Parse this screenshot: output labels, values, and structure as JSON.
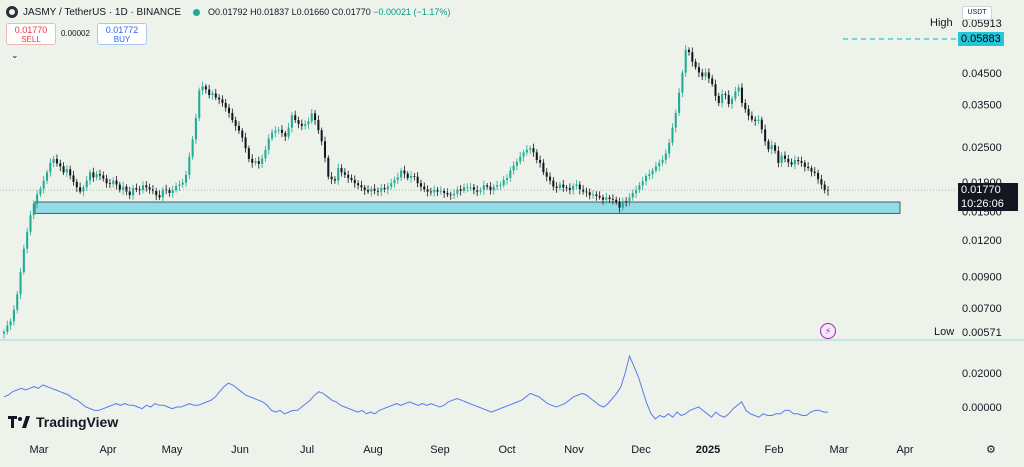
{
  "header": {
    "title": "JASMY / TetherUS · 1D · BINANCE",
    "open": "O0.01792",
    "high": "H0.01837",
    "low": "L0.01660",
    "close": "C0.01770",
    "change": "−0.00021 (−1.17%)"
  },
  "trade": {
    "sell_price": "0.01770",
    "sell_label": "SELL",
    "spread": "0.00002",
    "buy_price": "0.01772",
    "buy_label": "BUY"
  },
  "currency": "USDT",
  "price_axis": {
    "high_label": "High",
    "high_value": "0.05913",
    "high_tag": "0.05883",
    "low_label": "Low",
    "low_value": "0.00571",
    "current_price": "0.01770",
    "countdown": "10:26:06",
    "ticks": [
      {
        "label": "0.04500",
        "value": 0.045
      },
      {
        "label": "0.03500",
        "value": 0.035
      },
      {
        "label": "0.02500",
        "value": 0.025
      },
      {
        "label": "0.01900",
        "value": 0.019
      },
      {
        "label": "0.01500",
        "value": 0.015
      },
      {
        "label": "0.01200",
        "value": 0.012
      },
      {
        "label": "0.00900",
        "value": 0.009
      },
      {
        "label": "0.00700",
        "value": 0.007
      }
    ]
  },
  "indicator_axis": {
    "ticks": [
      {
        "label": "0.02000",
        "value": 0.02
      },
      {
        "label": "0.00000",
        "value": 0.0
      }
    ]
  },
  "time_axis": [
    "Mar",
    "Apr",
    "May",
    "Jun",
    "Jul",
    "Aug",
    "Sep",
    "Oct",
    "Nov",
    "Dec",
    "2025",
    "Feb",
    "Mar",
    "Apr"
  ],
  "brand": "TradingView",
  "colors": {
    "background": "#edf2ea",
    "up": "#22ab94",
    "down": "#131722",
    "zone_fill": "#93dbe6",
    "indicator_line": "#5b7bea",
    "high_tag": "#26c6da"
  },
  "chart_data": {
    "type": "candlestick",
    "support_zone": {
      "from": 0.0148,
      "to": 0.0162
    },
    "close_series": [
      0.0058,
      0.0061,
      0.0063,
      0.0069,
      0.0078,
      0.0093,
      0.0112,
      0.0128,
      0.0146,
      0.016,
      0.0172,
      0.018,
      0.0192,
      0.0205,
      0.0221,
      0.0228,
      0.022,
      0.0215,
      0.0205,
      0.021,
      0.02,
      0.019,
      0.0182,
      0.0176,
      0.0182,
      0.0192,
      0.0205,
      0.0197,
      0.0202,
      0.02,
      0.0195,
      0.0188,
      0.0187,
      0.0192,
      0.0186,
      0.0178,
      0.0183,
      0.0176,
      0.0171,
      0.0181,
      0.0179,
      0.0178,
      0.0185,
      0.0182,
      0.0179,
      0.0177,
      0.0171,
      0.0168,
      0.0179,
      0.0178,
      0.0174,
      0.0178,
      0.0184,
      0.0186,
      0.0189,
      0.0201,
      0.0232,
      0.0266,
      0.0315,
      0.0392,
      0.0405,
      0.0395,
      0.0378,
      0.0383,
      0.037,
      0.0365,
      0.0355,
      0.0342,
      0.0328,
      0.031,
      0.0296,
      0.0285,
      0.027,
      0.0248,
      0.0228,
      0.0221,
      0.0224,
      0.0219,
      0.0229,
      0.0245,
      0.0268,
      0.0281,
      0.0285,
      0.0287,
      0.028,
      0.0272,
      0.0292,
      0.0322,
      0.031,
      0.0301,
      0.0296,
      0.03,
      0.0307,
      0.0327,
      0.031,
      0.0286,
      0.0262,
      0.023,
      0.0198,
      0.0194,
      0.0192,
      0.0212,
      0.0205,
      0.0201,
      0.0196,
      0.0193,
      0.0188,
      0.0185,
      0.0182,
      0.0178,
      0.0176,
      0.018,
      0.0177,
      0.0176,
      0.0181,
      0.0179,
      0.0183,
      0.0188,
      0.0193,
      0.0197,
      0.0208,
      0.0203,
      0.0196,
      0.0199,
      0.0198,
      0.0188,
      0.0183,
      0.0179,
      0.0176,
      0.0175,
      0.0178,
      0.0176,
      0.0177,
      0.0174,
      0.0172,
      0.0171,
      0.0173,
      0.0179,
      0.0177,
      0.0182,
      0.0182,
      0.0182,
      0.0178,
      0.0176,
      0.0178,
      0.0185,
      0.0183,
      0.0178,
      0.0183,
      0.0185,
      0.0185,
      0.0193,
      0.0196,
      0.0208,
      0.0216,
      0.0223,
      0.0232,
      0.024,
      0.0245,
      0.0248,
      0.024,
      0.0226,
      0.0221,
      0.0205,
      0.0198,
      0.0192,
      0.0183,
      0.0181,
      0.0186,
      0.0182,
      0.0181,
      0.0178,
      0.0184,
      0.0186,
      0.0179,
      0.0176,
      0.0175,
      0.0171,
      0.0172,
      0.017,
      0.0168,
      0.0165,
      0.0168,
      0.0166,
      0.0165,
      0.0162,
      0.0155,
      0.0163,
      0.0162,
      0.0168,
      0.0174,
      0.0178,
      0.0185,
      0.0191,
      0.0199,
      0.0202,
      0.0208,
      0.0215,
      0.0221,
      0.0226,
      0.0238,
      0.0259,
      0.0292,
      0.0328,
      0.0385,
      0.0451,
      0.0541,
      0.0531,
      0.0492,
      0.0471,
      0.0452,
      0.0438,
      0.0452,
      0.0431,
      0.0412,
      0.0375,
      0.0355,
      0.0381,
      0.0378,
      0.0352,
      0.0367,
      0.0389,
      0.0401,
      0.0355,
      0.0338,
      0.0321,
      0.0311,
      0.0308,
      0.0311,
      0.0288,
      0.0262,
      0.0246,
      0.0254,
      0.0243,
      0.0221,
      0.0234,
      0.0228,
      0.0222,
      0.0218,
      0.0226,
      0.0224,
      0.0221,
      0.0214,
      0.0212,
      0.0206,
      0.0204,
      0.0194,
      0.0186,
      0.0178,
      0.0177
    ],
    "indicator_series": [
      0.006,
      0.007,
      0.009,
      0.01,
      0.011,
      0.01,
      0.011,
      0.012,
      0.011,
      0.013,
      0.012,
      0.011,
      0.01,
      0.009,
      0.008,
      0.007,
      0.005,
      0.004,
      0.002,
      0.0,
      -0.001,
      -0.002,
      -0.002,
      -0.001,
      0.0,
      0.001,
      0.002,
      0.001,
      0.002,
      0.001,
      0.001,
      0.0,
      -0.001,
      0.001,
      0.0,
      0.002,
      0.001,
      0.001,
      0.0,
      -0.001,
      0.0,
      0.0,
      0.001,
      0.002,
      0.001,
      0.001,
      0.002,
      0.003,
      0.004,
      0.006,
      0.009,
      0.012,
      0.014,
      0.013,
      0.011,
      0.009,
      0.007,
      0.006,
      0.005,
      0.004,
      0.003,
      0.001,
      -0.002,
      -0.003,
      -0.002,
      -0.004,
      -0.003,
      -0.002,
      -0.002,
      0.0,
      0.002,
      0.004,
      0.007,
      0.009,
      0.008,
      0.006,
      0.004,
      0.003,
      0.001,
      0.0,
      -0.001,
      -0.002,
      -0.003,
      -0.002,
      -0.004,
      -0.003,
      -0.004,
      -0.002,
      -0.001,
      0.0,
      0.001,
      0.002,
      0.001,
      0.002,
      0.003,
      0.002,
      0.001,
      0.002,
      0.001,
      0.002,
      0.001,
      0.0,
      0.001,
      0.003,
      0.004,
      0.005,
      0.004,
      0.003,
      0.002,
      0.001,
      0.0,
      -0.001,
      -0.002,
      -0.003,
      -0.002,
      -0.001,
      0.0,
      0.001,
      0.002,
      0.003,
      0.004,
      0.006,
      0.008,
      0.007,
      0.006,
      0.004,
      0.002,
      0.001,
      0.0,
      0.001,
      0.002,
      0.004,
      0.006,
      0.007,
      0.008,
      0.007,
      0.005,
      0.003,
      0.001,
      0.0,
      0.002,
      0.005,
      0.008,
      0.012,
      0.02,
      0.03,
      0.024,
      0.018,
      0.01,
      0.002,
      -0.004,
      -0.007,
      -0.005,
      -0.006,
      -0.004,
      -0.006,
      -0.003,
      -0.005,
      -0.004,
      -0.002,
      -0.001,
      0.0,
      -0.002,
      -0.004,
      -0.006,
      -0.003,
      -0.005,
      -0.006,
      -0.004,
      -0.001,
      0.001,
      0.003,
      -0.002,
      -0.004,
      -0.005,
      -0.006,
      -0.004,
      -0.005,
      -0.005,
      -0.004,
      -0.004,
      -0.002,
      -0.002,
      -0.004,
      -0.004,
      -0.005,
      -0.005,
      -0.003,
      -0.002,
      -0.002,
      -0.003,
      -0.003
    ]
  }
}
